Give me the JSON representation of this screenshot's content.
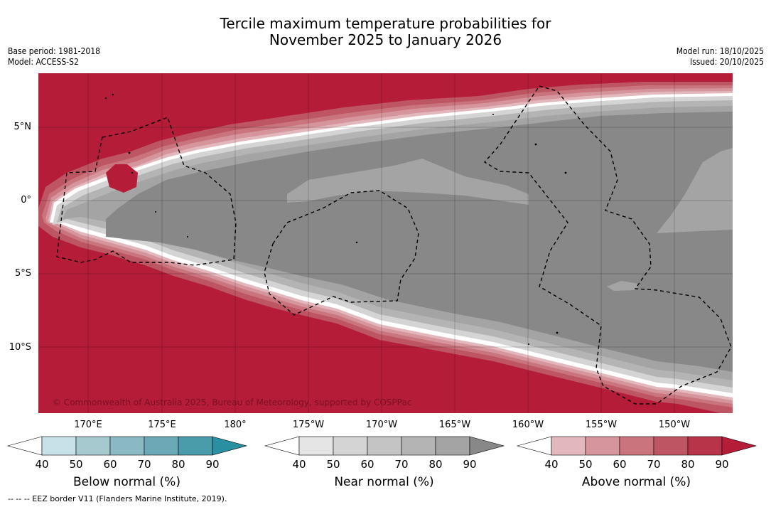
{
  "title": {
    "line1": "Tercile maximum temperature probabilities for",
    "line2": "November 2025 to January 2026"
  },
  "meta": {
    "base_period": "Base period: 1981-2018",
    "model": "Model: ACCESS-S2",
    "model_run": "Model run: 18/10/2025",
    "issued": "Issued: 20/10/2025"
  },
  "map": {
    "copyright": "© Commonwealth of Australia 2025, Bureau of Meteorology, supported by COSPPac",
    "lat_labels": [
      "5°N",
      "0°",
      "5°S",
      "10°S"
    ],
    "lon_labels": [
      "170°E",
      "175°E",
      "180°",
      "175°W",
      "170°W",
      "165°W",
      "160°W",
      "155°W",
      "150°W"
    ],
    "colors": {
      "above_90": "#b51c38",
      "near_90": "#888888",
      "near_80": "#a4a4a4"
    }
  },
  "colorbars": [
    {
      "label": "Below normal (%)",
      "ticks": [
        "40",
        "50",
        "60",
        "70",
        "80",
        "90"
      ],
      "colors": [
        "#ffffff",
        "#c7e1e8",
        "#a6c9d0",
        "#8bb9c3",
        "#6ba9b7",
        "#4a9cab",
        "#2a8fa0"
      ]
    },
    {
      "label": "Near normal (%)",
      "ticks": [
        "40",
        "50",
        "60",
        "70",
        "80",
        "90"
      ],
      "colors": [
        "#ffffff",
        "#e5e5e5",
        "#d4d4d4",
        "#c4c4c4",
        "#b4b4b4",
        "#a4a4a4",
        "#888888"
      ]
    },
    {
      "label": "Above normal (%)",
      "ticks": [
        "40",
        "50",
        "60",
        "70",
        "80",
        "90"
      ],
      "colors": [
        "#ffffff",
        "#e3b8bd",
        "#d6959c",
        "#ca747e",
        "#be5562",
        "#b83448",
        "#b51c38"
      ]
    }
  ],
  "footnote": "--  --  -- EEZ border V11 (Flanders Marine Institute, 2019)."
}
